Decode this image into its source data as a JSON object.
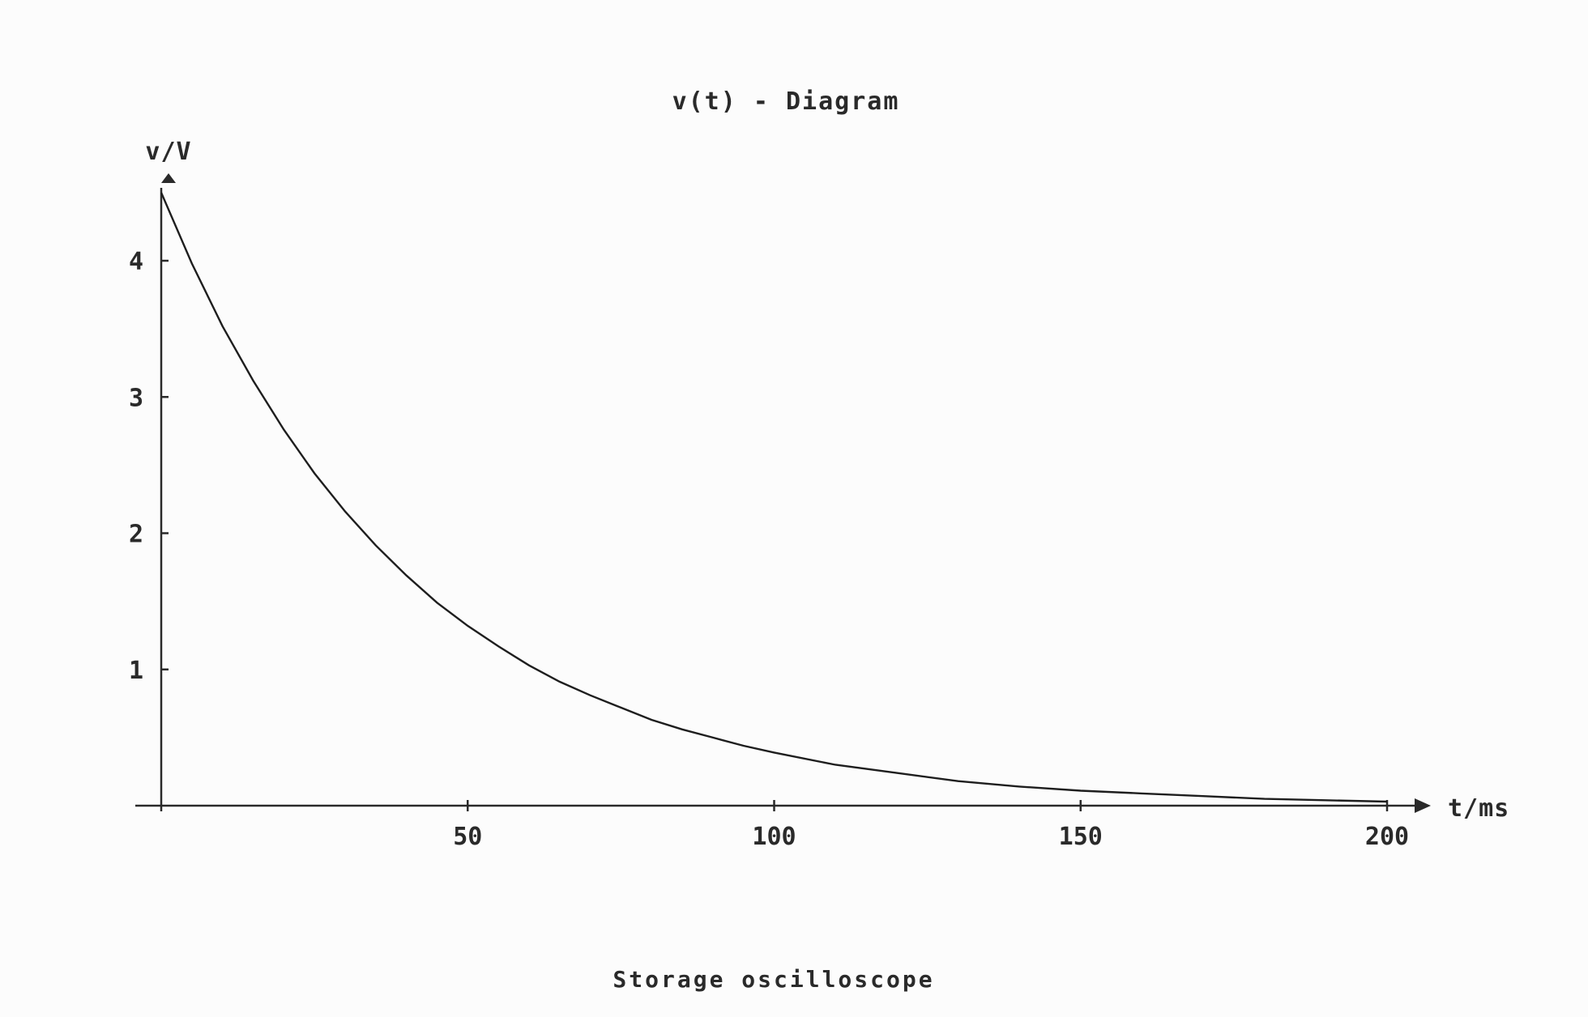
{
  "chart_data": {
    "type": "line",
    "title": "v(t) - Diagram",
    "xlabel": "t/ms",
    "ylabel": "v/V",
    "caption": "Storage oscilloscope",
    "x_ticks": [
      50,
      100,
      150,
      200
    ],
    "y_ticks": [
      1,
      2,
      3,
      4
    ],
    "xlim": [
      0,
      200
    ],
    "ylim": [
      0,
      4.5
    ],
    "grid": false,
    "series": [
      {
        "x": [
          0,
          5,
          10,
          15,
          20,
          25,
          30,
          35,
          40,
          45,
          50,
          55,
          60,
          65,
          70,
          75,
          80,
          85,
          90,
          95,
          100,
          110,
          120,
          130,
          140,
          150,
          160,
          170,
          180,
          190,
          200
        ],
        "y": [
          4.5,
          3.98,
          3.52,
          3.12,
          2.76,
          2.44,
          2.16,
          1.91,
          1.69,
          1.49,
          1.32,
          1.17,
          1.03,
          0.91,
          0.81,
          0.72,
          0.63,
          0.56,
          0.5,
          0.44,
          0.39,
          0.3,
          0.24,
          0.18,
          0.14,
          0.11,
          0.09,
          0.07,
          0.05,
          0.04,
          0.03
        ]
      }
    ]
  }
}
